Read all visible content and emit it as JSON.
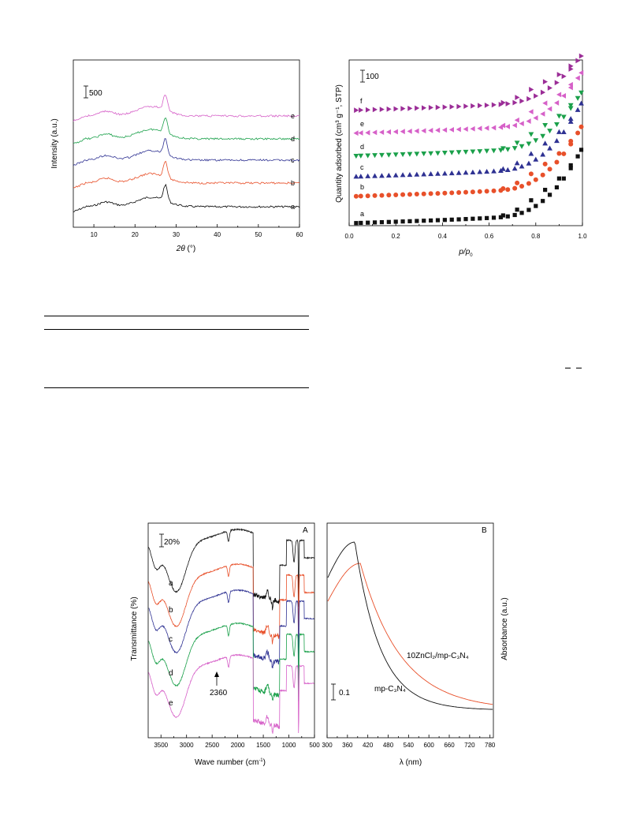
{
  "chart_data": [
    {
      "id": "xrd",
      "type": "line",
      "xlabel_italic": "2θ",
      "xlabel_unit": " (°)",
      "ylabel": "Intensity (a.u.)",
      "xlim": [
        5,
        60
      ],
      "x_ticks": [
        "10",
        "20",
        "30",
        "40",
        "50",
        "60"
      ],
      "scale_bar_label": "500",
      "series": [
        {
          "name": "a",
          "color": "#000000",
          "offset": 0
        },
        {
          "name": "b",
          "color": "#e8502a",
          "offset": 1
        },
        {
          "name": "c",
          "color": "#2e3192",
          "offset": 2
        },
        {
          "name": "d",
          "color": "#1aa04a",
          "offset": 3
        },
        {
          "name": "e",
          "color": "#d660c8",
          "offset": 4
        }
      ],
      "peak_x": 27.4,
      "shoulder_x": 13.0
    },
    {
      "id": "isotherm",
      "type": "scatter",
      "xlabel_italic": "p/p",
      "xlabel_sub": "0",
      "ylabel": "Quantity adsorbed (cm³ g⁻¹, STP)",
      "xlim": [
        0.0,
        1.0
      ],
      "x_ticks": [
        "0.0",
        "0.2",
        "0.4",
        "0.6",
        "0.8",
        "1.0"
      ],
      "scale_bar_label": "100",
      "x": [
        0.03,
        0.05,
        0.08,
        0.11,
        0.14,
        0.17,
        0.2,
        0.23,
        0.26,
        0.29,
        0.32,
        0.35,
        0.38,
        0.41,
        0.44,
        0.47,
        0.5,
        0.53,
        0.56,
        0.59,
        0.62,
        0.65,
        0.68,
        0.71,
        0.74,
        0.77,
        0.8,
        0.83,
        0.86,
        0.89,
        0.92,
        0.95,
        0.98,
        0.995
      ],
      "series": [
        {
          "name": "a",
          "color": "#111111",
          "marker": "square",
          "base": 283,
          "rise": 80
        },
        {
          "name": "b",
          "color": "#e8502a",
          "marker": "circle",
          "base": 249,
          "rise": 75
        },
        {
          "name": "c",
          "color": "#2e3192",
          "marker": "triangle-up",
          "base": 224,
          "rise": 80
        },
        {
          "name": "d",
          "color": "#1aa04a",
          "marker": "triangle-down",
          "base": 198,
          "rise": 67
        },
        {
          "name": "e",
          "color": "#d660c8",
          "marker": "triangle-left",
          "base": 169,
          "rise": 63
        },
        {
          "name": "f",
          "color": "#9b2d97",
          "marker": "triangle-right",
          "base": 140,
          "rise": 55
        }
      ]
    },
    {
      "id": "ftir",
      "type": "line",
      "panel_label": "A",
      "xlabel": "Wave number (cm",
      "xlabel_sup": "-1",
      "xlabel_end": ")",
      "ylabel": "Transmittance (%)",
      "xlim": [
        3750,
        500
      ],
      "x_ticks": [
        "3500",
        "3000",
        "2500",
        "2000",
        "1500",
        "1000",
        "500"
      ],
      "scale_bar_label": "20%",
      "annotation": "2360",
      "series": [
        {
          "name": "a",
          "color": "#111111",
          "offset": 0
        },
        {
          "name": "b",
          "color": "#e8502a",
          "offset": 1
        },
        {
          "name": "c",
          "color": "#2e3192",
          "offset": 2
        },
        {
          "name": "d",
          "color": "#1aa04a",
          "offset": 3
        },
        {
          "name": "e",
          "color": "#d660c8",
          "offset": 4
        }
      ]
    },
    {
      "id": "uvvis",
      "type": "line",
      "panel_label": "B",
      "xlabel": "λ (nm)",
      "ylabel": "Absorbance (a.u.)",
      "xlim": [
        300,
        790
      ],
      "x_ticks": [
        "300",
        "360",
        "420",
        "480",
        "540",
        "600",
        "660",
        "720",
        "780"
      ],
      "scale_bar_label": "0.1",
      "series": [
        {
          "name": "10ZnCl₂/mp-C₃N₄",
          "color": "#e8502a"
        },
        {
          "name": "mp-C₃N₄",
          "color": "#111111"
        }
      ]
    }
  ]
}
